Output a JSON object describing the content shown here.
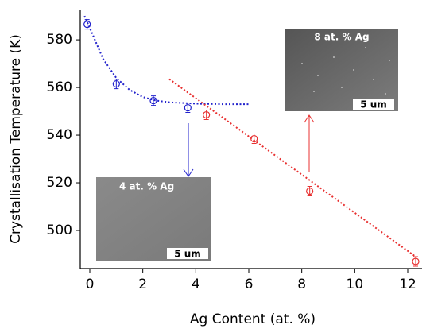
{
  "chart_data": {
    "type": "scatter",
    "x_label": "Ag Content (at. %)",
    "y_label": "Crystallisation Temperature (K)",
    "xlim": [
      -0.36,
      12.54
    ],
    "ylim": [
      484,
      592.7
    ],
    "xticks": [
      0,
      2,
      4,
      6,
      8,
      10,
      12
    ],
    "yticks": [
      500,
      520,
      540,
      560,
      580
    ],
    "series": [
      {
        "color": "#2222cc",
        "x": [
          -0.1,
          1.0,
          2.4,
          3.7
        ],
        "values": [
          586.5,
          561.5,
          554.5,
          551.5
        ],
        "errors": [
          2,
          2,
          2,
          2
        ]
      },
      {
        "color": "#e83030",
        "x": [
          4.4,
          6.2,
          8.3,
          12.3
        ],
        "values": [
          548.5,
          538.5,
          516.5,
          487
        ],
        "errors": [
          2,
          2,
          2,
          2
        ]
      }
    ],
    "fits": [
      {
        "color": "#2222cc",
        "x": [
          -0.2,
          0,
          0.5,
          1,
          1.5,
          2,
          2.5,
          3,
          4,
          5,
          6
        ],
        "values": [
          590,
          585,
          572,
          564,
          559,
          556,
          554.5,
          553.8,
          553.2,
          553,
          553
        ]
      },
      {
        "color": "#e83030",
        "x": [
          3,
          12.3
        ],
        "values": [
          563.5,
          489
        ]
      }
    ],
    "insets": [
      {
        "label": "4 at. % Ag",
        "scale": "5 um"
      },
      {
        "label": "8 at. % Ag",
        "scale": "5 um"
      }
    ]
  }
}
